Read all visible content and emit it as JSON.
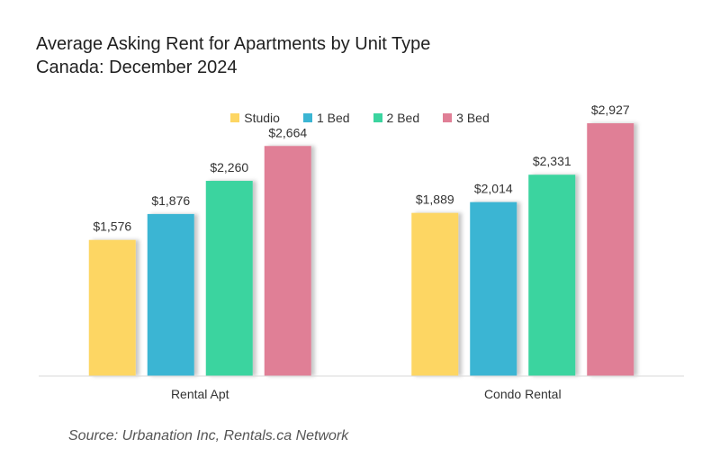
{
  "title_line1": "Average Asking Rent for Apartments by Unit Type",
  "title_line2": "Canada: December 2024",
  "source": "Source: Urbanation Inc, Rentals.ca Network",
  "chart_data": {
    "type": "bar",
    "categories": [
      "Rental Apt",
      "Condo Rental"
    ],
    "series": [
      {
        "name": "Studio",
        "color": "#FDD663",
        "values": [
          1576,
          1889
        ],
        "labels": [
          "$1,576",
          "$1,889"
        ]
      },
      {
        "name": "1 Bed",
        "color": "#3BB5D3",
        "values": [
          1876,
          2014
        ],
        "labels": [
          "$1,876",
          "$2,014"
        ]
      },
      {
        "name": "2 Bed",
        "color": "#3BD49F",
        "values": [
          2260,
          2331
        ],
        "labels": [
          "$2,260",
          "$2,331"
        ]
      },
      {
        "name": "3 Bed",
        "color": "#E07F96",
        "values": [
          2664,
          2927
        ],
        "labels": [
          "$2,664",
          "$2,927"
        ]
      }
    ],
    "ylim": [
      0,
      3000
    ],
    "legend": "top-center",
    "grid": false
  }
}
